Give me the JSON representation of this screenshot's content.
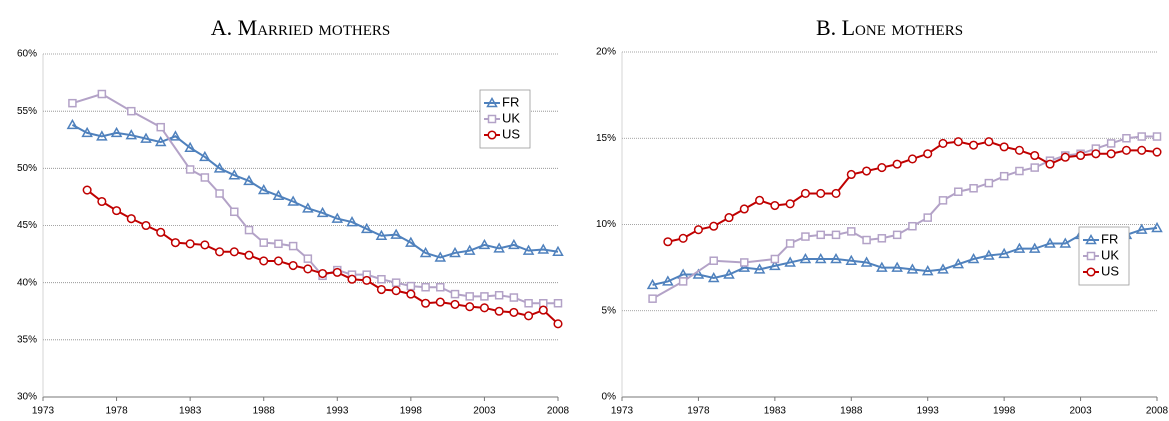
{
  "chart_data": [
    {
      "type": "line",
      "title": "A. Married mothers",
      "xlim": [
        1973,
        2008
      ],
      "xticks": [
        1973,
        1978,
        1983,
        1988,
        1993,
        1998,
        2003,
        2008
      ],
      "ylim": [
        30,
        60
      ],
      "yticks": [
        {
          "value": 30,
          "label": "30%"
        },
        {
          "value": 35,
          "label": "35%"
        },
        {
          "value": 40,
          "label": "40%"
        },
        {
          "value": 45,
          "label": "45%"
        },
        {
          "value": 50,
          "label": "50%"
        },
        {
          "value": 55,
          "label": "55%"
        },
        {
          "value": 60,
          "label": "60%"
        }
      ],
      "grid": true,
      "legend": "upper right",
      "series": [
        {
          "name": "FR",
          "color": "#4f81bd",
          "marker": "triangle",
          "x": [
            1975,
            1976,
            1977,
            1978,
            1979,
            1980,
            1981,
            1982,
            1983,
            1984,
            1985,
            1986,
            1987,
            1988,
            1989,
            1990,
            1991,
            1992,
            1993,
            1994,
            1995,
            1996,
            1997,
            1998,
            1999,
            2000,
            2001,
            2002,
            2003,
            2004,
            2005,
            2006,
            2007,
            2008
          ],
          "values": [
            53.8,
            53.1,
            52.8,
            53.1,
            52.9,
            52.6,
            52.3,
            52.8,
            51.8,
            51.0,
            50.0,
            49.4,
            48.9,
            48.1,
            47.6,
            47.1,
            46.5,
            46.1,
            45.6,
            45.3,
            44.7,
            44.1,
            44.2,
            43.5,
            42.6,
            42.2,
            42.6,
            42.8,
            43.3,
            43.0,
            43.3,
            42.8,
            42.9,
            42.7
          ]
        },
        {
          "name": "UK",
          "color": "#b3a2c7",
          "marker": "square",
          "x": [
            1975,
            1977,
            1979,
            1981,
            1983,
            1984,
            1985,
            1986,
            1987,
            1988,
            1989,
            1990,
            1991,
            1992,
            1993,
            1994,
            1995,
            1996,
            1997,
            1998,
            1999,
            2000,
            2001,
            2002,
            2003,
            2004,
            2005,
            2006,
            2007,
            2008
          ],
          "values": [
            55.7,
            56.5,
            55.0,
            53.6,
            49.9,
            49.2,
            47.8,
            46.2,
            44.6,
            43.5,
            43.4,
            43.2,
            42.1,
            40.6,
            41.1,
            40.7,
            40.7,
            40.3,
            40.0,
            39.7,
            39.6,
            39.6,
            39.0,
            38.8,
            38.8,
            38.9,
            38.7,
            38.2,
            38.2,
            38.2
          ]
        },
        {
          "name": "US",
          "color": "#c00000",
          "marker": "circle",
          "x": [
            1976,
            1977,
            1978,
            1979,
            1980,
            1981,
            1982,
            1983,
            1984,
            1985,
            1986,
            1987,
            1988,
            1989,
            1990,
            1991,
            1992,
            1993,
            1994,
            1995,
            1996,
            1997,
            1998,
            1999,
            2000,
            2001,
            2002,
            2003,
            2004,
            2005,
            2006,
            2007,
            2008
          ],
          "values": [
            48.1,
            47.1,
            46.3,
            45.6,
            45.0,
            44.4,
            43.5,
            43.4,
            43.3,
            42.7,
            42.7,
            42.4,
            41.9,
            41.9,
            41.5,
            41.2,
            40.8,
            40.9,
            40.3,
            40.2,
            39.4,
            39.3,
            39.0,
            38.2,
            38.3,
            38.1,
            37.9,
            37.8,
            37.5,
            37.4,
            37.1,
            37.6,
            36.4
          ]
        }
      ]
    },
    {
      "type": "line",
      "title": "B. Lone mothers",
      "xlim": [
        1973,
        2008
      ],
      "xticks": [
        1973,
        1978,
        1983,
        1988,
        1993,
        1998,
        2003,
        2008
      ],
      "ylim": [
        0,
        20
      ],
      "yticks": [
        {
          "value": 0,
          "label": "0%"
        },
        {
          "value": 5,
          "label": "5%"
        },
        {
          "value": 10,
          "label": "10%"
        },
        {
          "value": 15,
          "label": "15%"
        },
        {
          "value": 20,
          "label": "20%"
        }
      ],
      "grid": true,
      "legend": "lower right",
      "series": [
        {
          "name": "FR",
          "color": "#4f81bd",
          "marker": "triangle",
          "x": [
            1975,
            1976,
            1977,
            1978,
            1979,
            1980,
            1981,
            1982,
            1983,
            1984,
            1985,
            1986,
            1987,
            1988,
            1989,
            1990,
            1991,
            1992,
            1993,
            1994,
            1995,
            1996,
            1997,
            1998,
            1999,
            2000,
            2001,
            2002,
            2003,
            2004,
            2005,
            2006,
            2007,
            2008
          ],
          "values": [
            6.5,
            6.7,
            7.1,
            7.1,
            6.9,
            7.1,
            7.5,
            7.4,
            7.6,
            7.8,
            8.0,
            8.0,
            8.0,
            7.9,
            7.8,
            7.5,
            7.5,
            7.4,
            7.3,
            7.4,
            7.7,
            8.0,
            8.2,
            8.3,
            8.6,
            8.6,
            8.9,
            8.9,
            9.4,
            9.5,
            9.2,
            9.4,
            9.7,
            9.8
          ]
        },
        {
          "name": "UK",
          "color": "#b3a2c7",
          "marker": "square",
          "x": [
            1975,
            1977,
            1979,
            1981,
            1983,
            1984,
            1985,
            1986,
            1987,
            1988,
            1989,
            1990,
            1991,
            1992,
            1993,
            1994,
            1995,
            1996,
            1997,
            1998,
            1999,
            2000,
            2001,
            2002,
            2003,
            2004,
            2005,
            2006,
            2007,
            2008
          ],
          "values": [
            5.7,
            6.7,
            7.9,
            7.8,
            8.0,
            8.9,
            9.3,
            9.4,
            9.4,
            9.6,
            9.1,
            9.2,
            9.4,
            9.9,
            10.4,
            11.4,
            11.9,
            12.1,
            12.4,
            12.8,
            13.1,
            13.3,
            13.7,
            14.0,
            14.1,
            14.4,
            14.7,
            15.0,
            15.1,
            15.1
          ]
        },
        {
          "name": "US",
          "color": "#c00000",
          "marker": "circle",
          "x": [
            1976,
            1977,
            1978,
            1979,
            1980,
            1981,
            1982,
            1983,
            1984,
            1985,
            1986,
            1987,
            1988,
            1989,
            1990,
            1991,
            1992,
            1993,
            1994,
            1995,
            1996,
            1997,
            1998,
            1999,
            2000,
            2001,
            2002,
            2003,
            2004,
            2005,
            2006,
            2007,
            2008
          ],
          "values": [
            9.0,
            9.2,
            9.7,
            9.9,
            10.4,
            10.9,
            11.4,
            11.1,
            11.2,
            11.8,
            11.8,
            11.8,
            12.9,
            13.1,
            13.3,
            13.5,
            13.8,
            14.1,
            14.7,
            14.8,
            14.6,
            14.8,
            14.5,
            14.3,
            14.0,
            13.5,
            13.9,
            14.0,
            14.1,
            14.1,
            14.3,
            14.3,
            14.2
          ]
        }
      ]
    }
  ]
}
